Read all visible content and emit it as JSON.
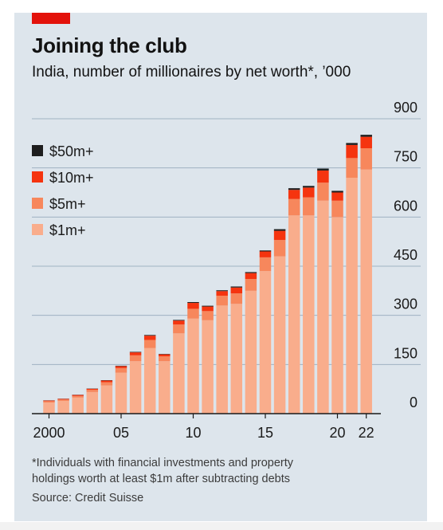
{
  "header": {
    "title": "Joining the club",
    "subtitle": "India, number of millionaires by net worth*, ’000"
  },
  "footer": {
    "footnote_line1": "*Individuals with financial investments and property",
    "footnote_line2": "holdings worth at least $1m after subtracting debts",
    "source": "Source: Credit Suisse"
  },
  "colors": {
    "background": "#dde5ec",
    "accent": "#e3120b",
    "50m_plus": "#1e1e1e",
    "10m_plus": "#f5340f",
    "5m_plus": "#f7875c",
    "1m_plus": "#f9ad8c"
  },
  "chart_data": {
    "type": "bar",
    "stacked": true,
    "categories": [
      "2000",
      "2001",
      "2002",
      "2003",
      "2004",
      "2005",
      "2006",
      "2007",
      "2008",
      "2009",
      "2010",
      "2011",
      "2012",
      "2013",
      "2014",
      "2015",
      "2016",
      "2017",
      "2018",
      "2019",
      "2020",
      "2021",
      "2022"
    ],
    "x_tick_labels": [
      {
        "index": 0,
        "label": "2000"
      },
      {
        "index": 5,
        "label": "05"
      },
      {
        "index": 10,
        "label": "10"
      },
      {
        "index": 15,
        "label": "15"
      },
      {
        "index": 20,
        "label": "20"
      },
      {
        "index": 22,
        "label": "22"
      }
    ],
    "y_ticks": [
      0,
      150,
      300,
      450,
      600,
      750,
      900
    ],
    "ylim": [
      0,
      900
    ],
    "y_axis_side": "right",
    "grid": true,
    "legend_position": "top-left",
    "series": [
      {
        "name": "$1m+",
        "color": "#f9ad8c",
        "values": [
          34,
          39,
          49,
          66,
          86,
          125,
          160,
          200,
          160,
          245,
          290,
          285,
          330,
          335,
          375,
          435,
          480,
          605,
          605,
          650,
          600,
          720,
          745
        ]
      },
      {
        "name": "$5m+",
        "color": "#f7875c",
        "values": [
          4,
          4,
          5,
          7,
          10,
          14,
          18,
          25,
          15,
          27,
          30,
          28,
          30,
          32,
          36,
          42,
          50,
          50,
          55,
          55,
          50,
          60,
          65
        ]
      },
      {
        "name": "$10m+",
        "color": "#f5340f",
        "values": [
          2,
          2,
          3,
          3,
          5,
          6,
          9,
          13,
          6,
          12,
          18,
          14,
          14,
          18,
          18,
          18,
          28,
          28,
          30,
          37,
          25,
          40,
          35
        ]
      },
      {
        "name": "$50m+",
        "color": "#1e1e1e",
        "values": [
          0.5,
          0.5,
          0.6,
          0.7,
          1,
          1.2,
          1.5,
          2,
          1.2,
          2,
          2.5,
          2.3,
          2.5,
          3,
          3,
          3,
          5,
          5,
          5,
          6,
          5,
          6,
          6
        ]
      }
    ],
    "legend_order": [
      "$50m+",
      "$10m+",
      "$5m+",
      "$1m+"
    ]
  }
}
